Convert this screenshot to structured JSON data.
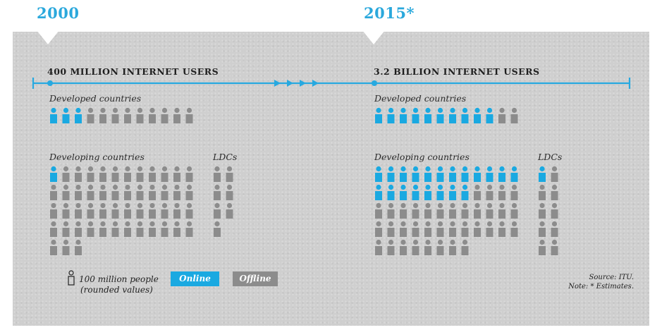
{
  "colors": {
    "online": "#1aa9e1",
    "offline": "#8c8c8c",
    "timeline": "#27a9e0",
    "year": "#2aa8dc"
  },
  "legend": {
    "unit_line1": "100 million people",
    "unit_line2": "(rounded values)",
    "online_label": "Online",
    "offline_label": "Offline"
  },
  "source": {
    "line1": "Source: ITU.",
    "line2": "Note: * Estimates."
  },
  "chart_data": {
    "type": "pictogram",
    "unit": "100 million people (rounded values)",
    "panels": [
      {
        "year_label": "2000",
        "headline": "400 MILLION INTERNET USERS",
        "groups": [
          {
            "label": "Developed countries",
            "online": 3,
            "offline": 9,
            "columns": 12
          },
          {
            "label": "Developing countries",
            "online": 1,
            "offline": 50,
            "columns": 12
          },
          {
            "label": "LDCs",
            "online": 0,
            "offline": 7,
            "columns": 2
          }
        ]
      },
      {
        "year_label": "2015*",
        "headline": "3.2 BILLION INTERNET USERS",
        "groups": [
          {
            "label": "Developed countries",
            "online": 10,
            "offline": 2,
            "columns": 12
          },
          {
            "label": "Developing countries",
            "online": 20,
            "offline": 36,
            "columns": 12
          },
          {
            "label": "LDCs",
            "online": 1,
            "offline": 9,
            "columns": 2
          }
        ]
      }
    ]
  }
}
